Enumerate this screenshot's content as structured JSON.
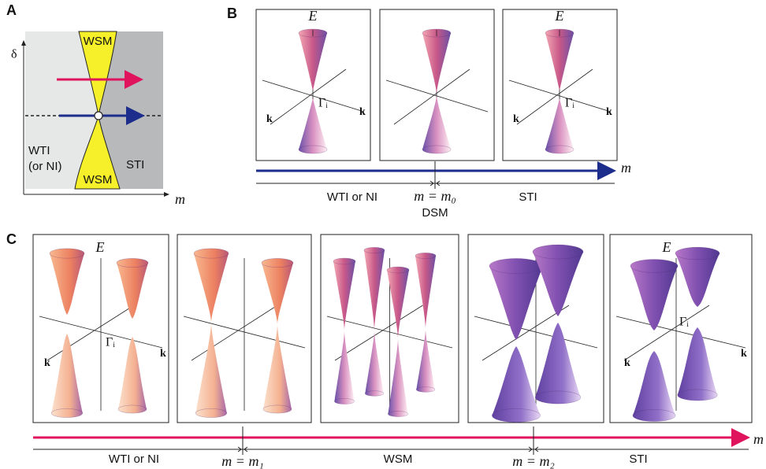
{
  "panelA": {
    "label": "A",
    "y_axis_label": "δ",
    "x_axis_label": "m",
    "wsm_top": "WSM",
    "wsm_bottom": "WSM",
    "wti_lines": [
      "WTI",
      "(or NI)"
    ],
    "sti": "STI"
  },
  "panelB": {
    "label": "B",
    "plot1": {
      "energy": "E",
      "gamma": "Γᵢ",
      "k_left": "k",
      "k_right": "k"
    },
    "plot3": {
      "energy": "E",
      "gamma": "Γᵢ",
      "k_left": "k",
      "k_right": "k"
    },
    "axis_label": "m",
    "phase_left": "WTI or NI",
    "transition": "m = m₀",
    "transition_phase": "DSM",
    "phase_right": "STI"
  },
  "panelC": {
    "label": "C",
    "plot1": {
      "energy": "E",
      "gamma": "Γᵢ",
      "k_left": "k",
      "k_right": "k"
    },
    "plot5": {
      "energy": "E",
      "gamma": "Γᵢ",
      "k_left": "k",
      "k_right": "k"
    },
    "axis_label": "m",
    "phase_left": "WTI or NI",
    "transition1": "m = m₁",
    "phase_middle": "WSM",
    "transition2": "m = m₂",
    "phase_right": "STI"
  }
}
